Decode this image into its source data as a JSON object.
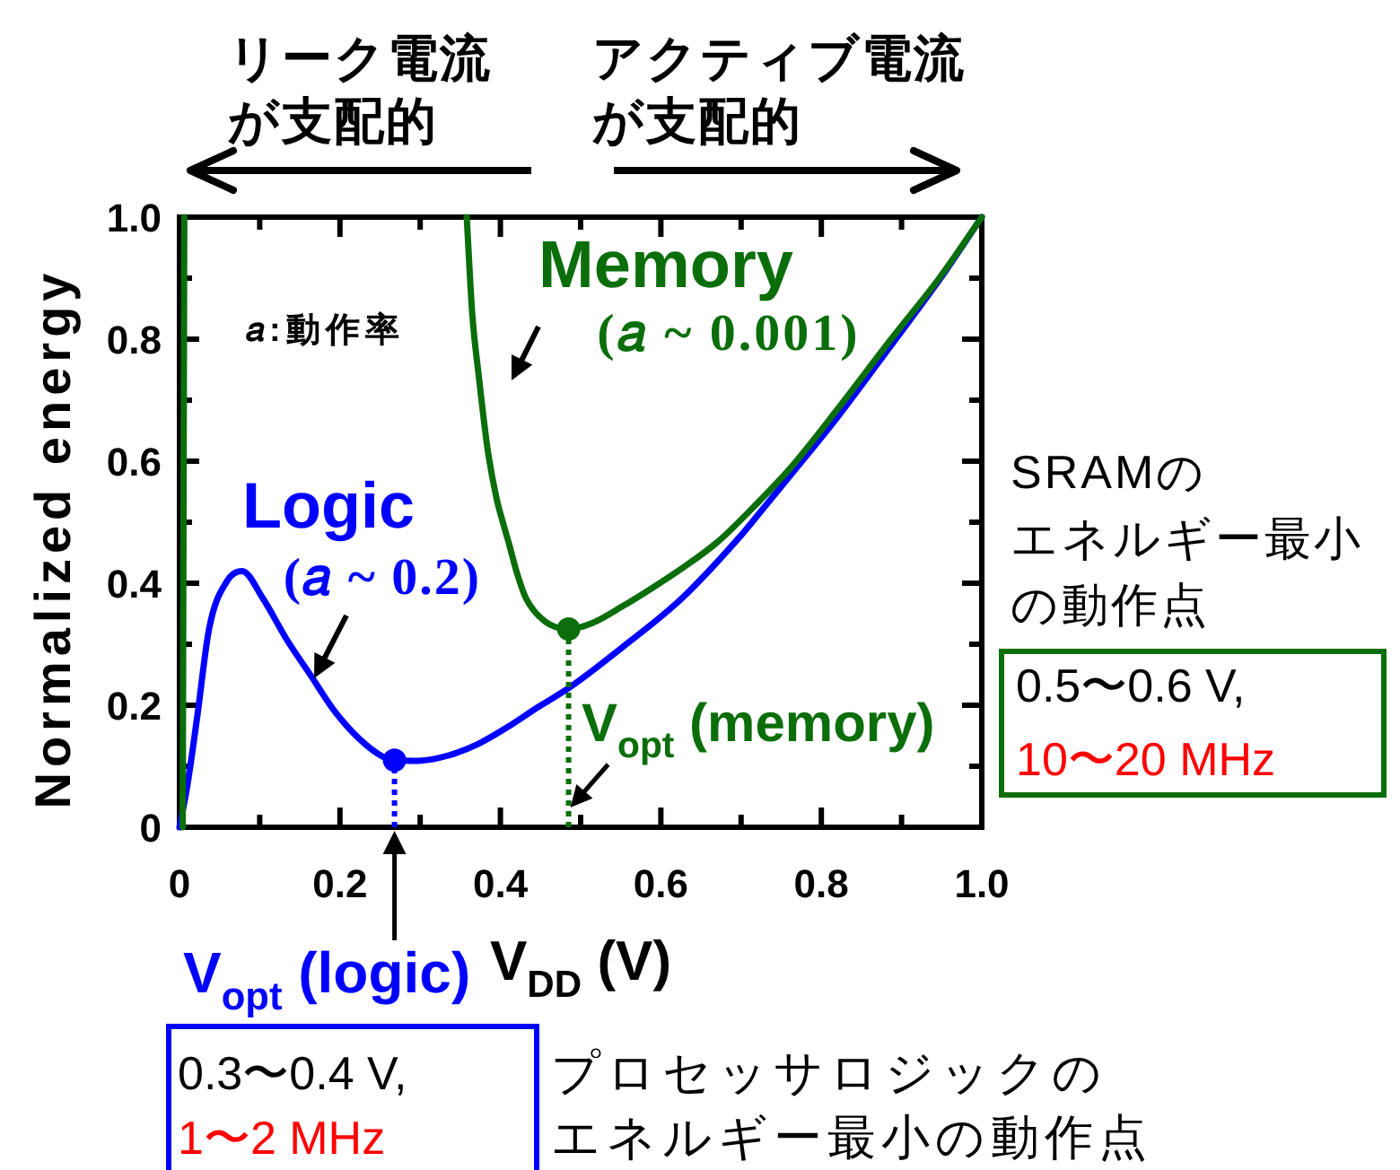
{
  "chart_data": {
    "type": "line",
    "xlabel": "V$_{DD}$ (V)",
    "ylabel": "Normalized energy",
    "xlim": [
      0,
      1
    ],
    "ylim": [
      0,
      1
    ],
    "xticks": [
      0,
      {
        "value": 0.1,
        "label": null
      },
      0.2,
      {
        "value": 0.3,
        "label": null
      },
      0.4,
      {
        "value": 0.5,
        "label": null
      },
      0.6,
      {
        "value": 0.7,
        "label": null
      },
      0.8,
      {
        "value": 0.9,
        "label": null
      },
      {
        "value": 1,
        "label": "1.0"
      }
    ],
    "yticks": [
      0,
      {
        "value": 0.1,
        "label": null
      },
      0.2,
      {
        "value": 0.3,
        "label": null
      },
      0.4,
      {
        "value": 0.5,
        "label": null
      },
      0.6,
      {
        "value": 0.7,
        "label": null
      },
      0.8,
      {
        "value": 0.9,
        "label": null
      },
      {
        "value": 1,
        "label": "1.0"
      }
    ],
    "line_style": "solid",
    "series": [
      {
        "name": "Logic\n(𝑎 ~ 0.2)",
        "color": "#0000ff",
        "x": [
          0,
          0.01,
          0.022,
          0.037,
          0.06,
          0.078,
          0.104,
          0.134,
          0.164,
          0.194,
          0.224,
          0.253,
          0.268,
          0.298,
          0.336,
          0.373,
          0.41,
          0.447,
          0.485,
          0.552,
          0.626,
          0.701,
          0.723,
          0.761,
          0.82,
          0.887,
          0.947,
          1.0
        ],
        "values": [
          0,
          0.07,
          0.18,
          0.326,
          0.405,
          0.42,
          0.375,
          0.307,
          0.248,
          0.189,
          0.145,
          0.116,
          0.11,
          0.109,
          0.118,
          0.137,
          0.165,
          0.197,
          0.228,
          0.295,
          0.375,
          0.48,
          0.515,
          0.576,
          0.672,
          0.79,
          0.897,
          1.0
        ]
      },
      {
        "name": "Memory\n(𝑎 ~ 0.001)",
        "color": "#0b6e0b",
        "x": [
          0.358,
          0.365,
          0.373,
          0.384,
          0.395,
          0.403,
          0.41,
          0.421,
          0.432,
          0.455,
          0.485,
          0.515,
          0.552,
          0.589,
          0.626,
          0.671,
          0.723,
          0.761,
          0.82,
          0.887,
          0.947,
          1.0
        ],
        "values": [
          1.0,
          0.84,
          0.74,
          0.62,
          0.54,
          0.5,
          0.468,
          0.415,
          0.375,
          0.338,
          0.325,
          0.335,
          0.362,
          0.392,
          0.424,
          0.468,
          0.535,
          0.588,
          0.685,
          0.8,
          0.9,
          1.0
        ]
      },
      {
        "color": "#0b6e0b",
        "x": [
          0.004,
          0.006
        ],
        "values": [
          0,
          1.0
        ]
      },
      {
        "type": "scatter",
        "marker": "circle",
        "color": "#0000ff",
        "x": [
          0.268
        ],
        "values": [
          0.11
        ]
      },
      {
        "type": "scatter",
        "marker": "circle",
        "color": "#0b6e0b",
        "x": [
          0.485
        ],
        "values": [
          0.325
        ]
      },
      {
        "line_style": "dotted",
        "color": "#0000ff",
        "x": [
          0.268,
          0.268
        ],
        "values": [
          0,
          0.11
        ]
      },
      {
        "name": "V$_{opt}$ (memory)",
        "line_style": "dotted",
        "color": "#0b6e0b",
        "x": [
          0.485,
          0.485
        ],
        "values": [
          0,
          0.325
        ]
      }
    ],
    "annotations": [
      "リーク電流が支配的",
      "アクティブ電流が支配的",
      "𝑎:動作率",
      "SRAMのエネルギー最小の動作点",
      "0.5〜0.6 V,\n10〜20 MHz",
      "0.3〜0.4 V,\n1〜2 MHz",
      "プロセッサロジックのエネルギー最小の動作点",
      {
        "text": "V$_{opt}$ (logic)",
        "x": 0.268,
        "y": 0
      }
    ]
  }
}
